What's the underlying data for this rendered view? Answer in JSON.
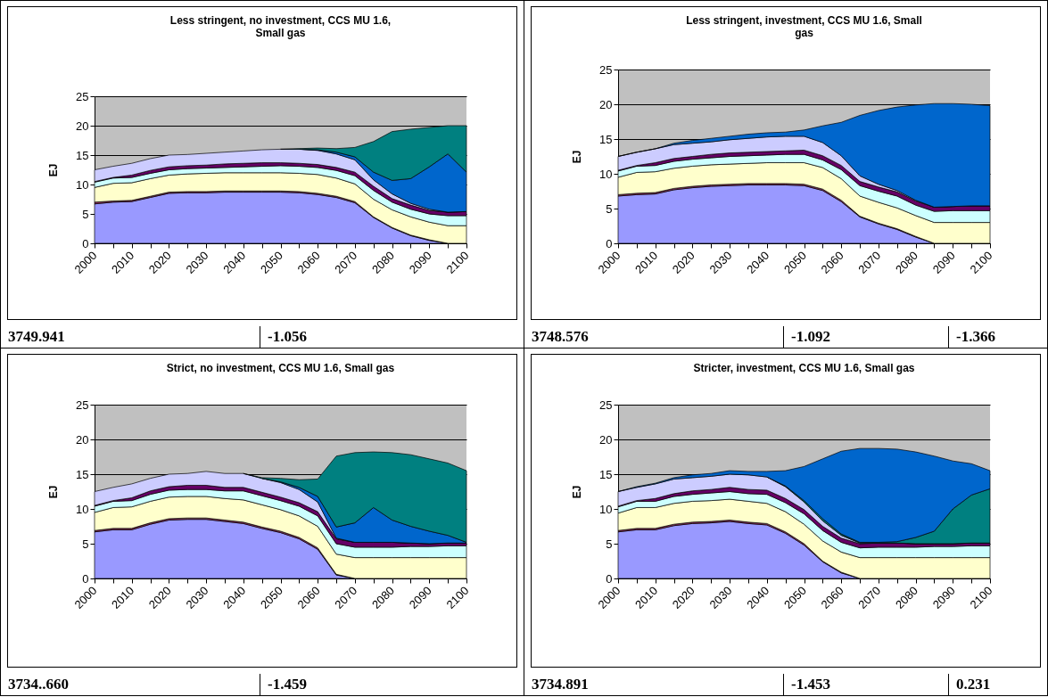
{
  "chart_data": [
    {
      "type": "area",
      "stacked": true,
      "title": "Less stringent, no investment, CCS MU 1.6, Small gas",
      "ylabel": "EJ",
      "grid": "y",
      "categories": [
        "2000",
        null,
        "2010",
        null,
        "2020",
        null,
        "2030",
        null,
        "2040",
        null,
        "2050",
        null,
        "2060",
        null,
        "2070",
        null,
        "2080",
        null,
        "2090",
        null,
        "2100"
      ],
      "ylim": [
        0,
        25
      ],
      "yticks": [
        0,
        5,
        10,
        15,
        20,
        25
      ],
      "series": [
        {
          "color": "#9999ff",
          "values": [
            6.7,
            7.0,
            7.1,
            7.8,
            8.5,
            8.6,
            8.6,
            8.7,
            8.7,
            8.7,
            8.7,
            8.6,
            8.3,
            7.8,
            6.9,
            4.4,
            2.6,
            1.3,
            0.5,
            0,
            0
          ]
        },
        {
          "color": "#993366",
          "values": [
            0.3,
            0.2,
            0.2,
            0.2,
            0.2,
            0.2,
            0.2,
            0.2,
            0.2,
            0.2,
            0.2,
            0.2,
            0.2,
            0.2,
            0.2,
            0.1,
            0.1,
            0.1,
            0.1,
            0,
            0
          ]
        },
        {
          "color": "#ffffcc",
          "values": [
            2.5,
            3.0,
            3.0,
            3.0,
            2.9,
            3.0,
            3.1,
            3.1,
            3.1,
            3.1,
            3.1,
            3.1,
            3.2,
            3.1,
            3.0,
            3.0,
            3.0,
            3.1,
            3.0,
            3.0,
            3.0
          ]
        },
        {
          "color": "#ccffff",
          "values": [
            0.9,
            0.9,
            0.9,
            0.9,
            0.9,
            0.9,
            0.9,
            0.9,
            1.0,
            1.1,
            1.2,
            1.2,
            1.2,
            1.3,
            1.4,
            1.5,
            1.3,
            1.3,
            1.4,
            1.7,
            1.7
          ]
        },
        {
          "color": "#660066",
          "values": [
            0.1,
            0.1,
            0.4,
            0.5,
            0.5,
            0.5,
            0.5,
            0.6,
            0.6,
            0.6,
            0.5,
            0.5,
            0.5,
            0.5,
            0.6,
            0.7,
            0.6,
            0.7,
            0.6,
            0.6,
            0.7
          ]
        },
        {
          "color": "#ccccff",
          "values": [
            2.0,
            1.9,
            2.0,
            2.0,
            2.0,
            1.9,
            2.0,
            2.0,
            2.1,
            2.2,
            2.3,
            2.4,
            2.4,
            2.3,
            2.1,
            1.1,
            0.8,
            0.3,
            0.2,
            0,
            0
          ]
        },
        {
          "color": "#0066cc",
          "values": [
            null,
            null,
            null,
            null,
            null,
            null,
            null,
            null,
            null,
            null,
            null,
            0,
            0.1,
            0.3,
            0.5,
            1.3,
            2.3,
            4.2,
            7.2,
            9.9,
            6.7
          ]
        },
        {
          "color": "#008080",
          "values": [
            null,
            null,
            null,
            null,
            null,
            null,
            null,
            null,
            null,
            null,
            0,
            0.1,
            0.3,
            0.6,
            1.6,
            5.2,
            8.3,
            8.4,
            6.7,
            4.8,
            7.9
          ]
        }
      ],
      "annotations": [
        "3749.941",
        "-1.056"
      ]
    },
    {
      "type": "area",
      "stacked": true,
      "title": "Less stringent, investment, CCS MU 1.6, Small gas",
      "ylabel": "EJ",
      "grid": "y",
      "categories": [
        "2000",
        null,
        "2010",
        null,
        "2020",
        null,
        "2030",
        null,
        "2040",
        null,
        "2050",
        null,
        "2060",
        null,
        "2070",
        null,
        "2080",
        null,
        "2090",
        null,
        "2100"
      ],
      "ylim": [
        0,
        25
      ],
      "yticks": [
        0,
        5,
        10,
        15,
        20,
        25
      ],
      "series": [
        {
          "color": "#9999ff",
          "values": [
            6.8,
            7.0,
            7.1,
            7.7,
            8.0,
            8.2,
            8.3,
            8.4,
            8.4,
            8.4,
            8.3,
            7.6,
            6.0,
            3.8,
            2.8,
            2.0,
            0.9,
            0,
            0,
            0,
            0
          ]
        },
        {
          "color": "#993366",
          "values": [
            0.2,
            0.2,
            0.2,
            0.2,
            0.2,
            0.2,
            0.2,
            0.2,
            0.2,
            0.2,
            0.2,
            0.2,
            0.2,
            0.1,
            0.1,
            0.1,
            0.1,
            0,
            0,
            0,
            0
          ]
        },
        {
          "color": "#ffffcc",
          "values": [
            2.5,
            3.0,
            3.0,
            2.9,
            2.9,
            2.9,
            2.9,
            2.9,
            3.0,
            3.0,
            3.1,
            3.1,
            3.1,
            2.9,
            3.0,
            3.0,
            3.0,
            3.0,
            3.0,
            3.0,
            3.0
          ]
        },
        {
          "color": "#ccffff",
          "values": [
            0.9,
            0.9,
            0.9,
            1.0,
            1.0,
            1.0,
            1.1,
            1.1,
            1.1,
            1.2,
            1.2,
            1.1,
            1.3,
            1.5,
            1.6,
            1.7,
            1.5,
            1.6,
            1.7,
            1.7,
            1.7
          ]
        },
        {
          "color": "#660066",
          "values": [
            0.1,
            0.1,
            0.4,
            0.4,
            0.4,
            0.5,
            0.5,
            0.5,
            0.5,
            0.5,
            0.6,
            0.6,
            0.6,
            0.6,
            0.6,
            0.6,
            0.6,
            0.6,
            0.6,
            0.7,
            0.7
          ]
        },
        {
          "color": "#ccccff",
          "values": [
            2.0,
            1.9,
            2.0,
            2.0,
            1.9,
            1.8,
            1.9,
            2.0,
            2.1,
            2.1,
            2.0,
            1.9,
            1.4,
            0.8,
            0.4,
            0.2,
            0.1,
            0,
            0,
            0,
            0
          ]
        },
        {
          "color": "#0066cc",
          "values": [
            0,
            0,
            0,
            0.2,
            0.4,
            0.5,
            0.5,
            0.6,
            0.6,
            0.6,
            0.9,
            2.4,
            4.8,
            8.7,
            10.6,
            12.0,
            13.7,
            14.9,
            14.8,
            14.6,
            14.4
          ]
        }
      ],
      "annotations": [
        "3748.576",
        "-1.092",
        "-1.366"
      ]
    },
    {
      "type": "area",
      "stacked": true,
      "title": "Strict, no investment, CCS MU 1.6, Small gas",
      "ylabel": "EJ",
      "grid": "y",
      "categories": [
        "2000",
        null,
        "2010",
        null,
        "2020",
        null,
        "2030",
        null,
        "2040",
        null,
        "2050",
        null,
        "2060",
        null,
        "2070",
        null,
        "2080",
        null,
        "2090",
        null,
        "2100"
      ],
      "ylim": [
        0,
        25
      ],
      "yticks": [
        0,
        5,
        10,
        15,
        20,
        25
      ],
      "series": [
        {
          "color": "#9999ff",
          "values": [
            6.7,
            7.0,
            7.0,
            7.8,
            8.4,
            8.5,
            8.5,
            8.2,
            7.9,
            7.2,
            6.6,
            5.7,
            4.2,
            0.5,
            0,
            0,
            0,
            0,
            0,
            0,
            0
          ]
        },
        {
          "color": "#993366",
          "values": [
            0.2,
            0.2,
            0.2,
            0.2,
            0.2,
            0.2,
            0.2,
            0.2,
            0.2,
            0.2,
            0.2,
            0.2,
            0.2,
            0.1,
            0,
            0,
            0,
            0,
            0,
            0,
            0
          ]
        },
        {
          "color": "#ffffcc",
          "values": [
            2.6,
            3.0,
            3.1,
            3.1,
            3.1,
            3.1,
            3.1,
            3.1,
            3.2,
            3.2,
            3.1,
            3.1,
            3.1,
            2.9,
            3.0,
            3.0,
            3.0,
            3.0,
            3.0,
            3.0,
            3.0
          ]
        },
        {
          "color": "#ccffff",
          "values": [
            0.9,
            0.9,
            0.9,
            1.0,
            1.0,
            1.0,
            1.0,
            1.1,
            1.3,
            1.3,
            1.3,
            1.4,
            1.5,
            1.5,
            1.5,
            1.5,
            1.5,
            1.6,
            1.6,
            1.7,
            1.7
          ]
        },
        {
          "color": "#660066",
          "values": [
            0.1,
            0.1,
            0.4,
            0.5,
            0.5,
            0.6,
            0.6,
            0.5,
            0.5,
            0.5,
            0.5,
            0.5,
            0.6,
            0.7,
            0.7,
            0.7,
            0.7,
            0.5,
            0.4,
            0.4,
            0.4
          ]
        },
        {
          "color": "#ccccff",
          "values": [
            2.0,
            1.9,
            2.0,
            1.8,
            1.8,
            1.7,
            2.0,
            2.0,
            2.0,
            2.0,
            2.1,
            1.9,
            1.4,
            0.1,
            0,
            0,
            0,
            0,
            0,
            0,
            0
          ]
        },
        {
          "color": "#0066cc",
          "values": [
            null,
            null,
            null,
            null,
            null,
            null,
            null,
            null,
            null,
            0,
            0.1,
            0.3,
            0.8,
            1.6,
            2.8,
            5.0,
            3.2,
            2.4,
            1.8,
            1.1,
            0.1
          ]
        },
        {
          "color": "#008080",
          "values": [
            null,
            null,
            null,
            null,
            null,
            null,
            null,
            null,
            0,
            0.1,
            0.5,
            1.1,
            2.5,
            10.2,
            10.1,
            8.0,
            9.7,
            10.3,
            10.4,
            10.4,
            10.3
          ]
        }
      ],
      "annotations": [
        "3734..660",
        "-1.459"
      ]
    },
    {
      "type": "area",
      "stacked": true,
      "title": "Stricter, investment, CCS MU 1.6, Small gas",
      "ylabel": "EJ",
      "grid": "y",
      "categories": [
        "2000",
        null,
        "2010",
        null,
        "2020",
        null,
        "2030",
        null,
        "2040",
        null,
        "2050",
        null,
        "2060",
        null,
        "2070",
        null,
        "2080",
        null,
        "2090",
        null,
        "2100"
      ],
      "ylim": [
        0,
        25
      ],
      "yticks": [
        0,
        5,
        10,
        15,
        20,
        25
      ],
      "series": [
        {
          "color": "#9999ff",
          "values": [
            6.7,
            7.0,
            7.0,
            7.6,
            7.9,
            8.0,
            8.2,
            7.9,
            7.7,
            6.5,
            4.8,
            2.4,
            0.8,
            0,
            0,
            0,
            0,
            0,
            0,
            0,
            0
          ]
        },
        {
          "color": "#993366",
          "values": [
            0.2,
            0.2,
            0.2,
            0.2,
            0.2,
            0.2,
            0.2,
            0.2,
            0.2,
            0.2,
            0.2,
            0.1,
            0.1,
            0,
            0,
            0,
            0,
            0,
            0,
            0,
            0
          ]
        },
        {
          "color": "#ffffcc",
          "values": [
            2.5,
            3.0,
            3.0,
            3.0,
            3.0,
            3.0,
            3.0,
            3.0,
            2.9,
            2.9,
            2.8,
            2.9,
            2.9,
            3.0,
            3.0,
            3.0,
            3.0,
            3.0,
            3.0,
            3.0,
            3.0
          ]
        },
        {
          "color": "#ccffff",
          "values": [
            0.9,
            0.9,
            0.9,
            1.0,
            1.0,
            1.1,
            1.1,
            1.1,
            1.3,
            1.3,
            1.5,
            1.5,
            1.4,
            1.4,
            1.5,
            1.5,
            1.5,
            1.6,
            1.6,
            1.7,
            1.7
          ]
        },
        {
          "color": "#660066",
          "values": [
            0.1,
            0.1,
            0.4,
            0.4,
            0.5,
            0.5,
            0.6,
            0.6,
            0.6,
            0.6,
            0.6,
            0.6,
            0.6,
            0.6,
            0.6,
            0.6,
            0.5,
            0.4,
            0.4,
            0.4,
            0.4
          ]
        },
        {
          "color": "#ccccff",
          "values": [
            2.1,
            1.9,
            2.1,
            2.1,
            1.9,
            1.9,
            1.9,
            2.1,
            1.9,
            1.7,
            1.1,
            0.8,
            0.4,
            0.1,
            0,
            0,
            0,
            0,
            0,
            0,
            0
          ]
        },
        {
          "color": "#008080",
          "values": [
            null,
            null,
            null,
            null,
            null,
            null,
            null,
            null,
            0,
            0.1,
            0.2,
            0.3,
            0.2,
            0.1,
            0.1,
            0.2,
            0.9,
            1.8,
            5.0,
            6.9,
            7.8
          ]
        },
        {
          "color": "#0066cc",
          "values": [
            0,
            0.1,
            0.1,
            0.2,
            0.4,
            0.4,
            0.5,
            0.5,
            0.8,
            2.2,
            4.9,
            8.6,
            11.9,
            13.5,
            13.5,
            13.3,
            12.3,
            10.8,
            6.9,
            4.5,
            2.6
          ]
        }
      ],
      "annotations": [
        "3734.891",
        "-1.453",
        "0.231"
      ]
    }
  ]
}
